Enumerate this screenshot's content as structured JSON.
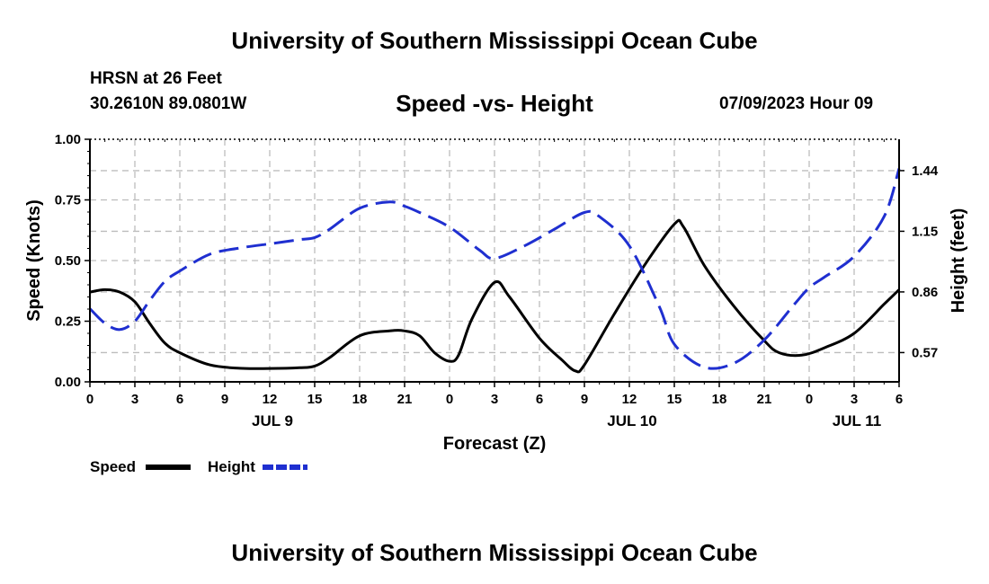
{
  "header": {
    "title": "University of Southern Mississippi Ocean Cube",
    "station": "HRSN at 26 Feet",
    "coords": "30.2610N  89.0801W",
    "subtitle": "Speed -vs- Height",
    "date": "07/09/2023 Hour 09"
  },
  "footer": {
    "title": "University of Southern Mississippi Ocean Cube"
  },
  "chart_data": {
    "type": "line",
    "title": "Speed -vs- Height",
    "xlabel": "Forecast (Z)",
    "ylabel": "Speed (Knots)",
    "y2label": "Height (feet)",
    "x_range": [
      0,
      54
    ],
    "ylim": [
      0,
      1.0
    ],
    "y2lim": [
      0.43,
      1.59
    ],
    "x_ticks": [
      {
        "x": 0,
        "label": "0"
      },
      {
        "x": 3,
        "label": "3"
      },
      {
        "x": 6,
        "label": "6"
      },
      {
        "x": 9,
        "label": "9"
      },
      {
        "x": 12,
        "label": "12"
      },
      {
        "x": 15,
        "label": "15"
      },
      {
        "x": 18,
        "label": "18"
      },
      {
        "x": 21,
        "label": "21"
      },
      {
        "x": 24,
        "label": "0"
      },
      {
        "x": 27,
        "label": "3"
      },
      {
        "x": 30,
        "label": "6"
      },
      {
        "x": 33,
        "label": "9"
      },
      {
        "x": 36,
        "label": "12"
      },
      {
        "x": 39,
        "label": "15"
      },
      {
        "x": 42,
        "label": "18"
      },
      {
        "x": 45,
        "label": "21"
      },
      {
        "x": 48,
        "label": "0"
      },
      {
        "x": 51,
        "label": "3"
      },
      {
        "x": 54,
        "label": "6"
      }
    ],
    "day_labels": [
      {
        "x": 12,
        "label": "JUL 9"
      },
      {
        "x": 36,
        "label": "JUL 10"
      },
      {
        "x": 51,
        "label": "JUL 11"
      }
    ],
    "y_ticks": [
      {
        "v": 0.0,
        "label": "0.00"
      },
      {
        "v": 0.25,
        "label": "0.25"
      },
      {
        "v": 0.5,
        "label": "0.50"
      },
      {
        "v": 0.75,
        "label": "0.75"
      },
      {
        "v": 1.0,
        "label": "1.00"
      }
    ],
    "y2_ticks": [
      {
        "v": 0.57,
        "label": "0.57"
      },
      {
        "v": 0.86,
        "label": "0.86"
      },
      {
        "v": 1.15,
        "label": "1.15"
      },
      {
        "v": 1.44,
        "label": "1.44"
      }
    ],
    "series": [
      {
        "name": "Speed",
        "axis": "left",
        "color": "#000000",
        "x": [
          0,
          1,
          2,
          3,
          4,
          5,
          6,
          8,
          10,
          12,
          14,
          15,
          16,
          18,
          20,
          21,
          22,
          23,
          24,
          24.6,
          25.5,
          27,
          28,
          30,
          31.5,
          32.4,
          33,
          35,
          37,
          39,
          39.6,
          41,
          43,
          45,
          46,
          47.5,
          49,
          51,
          53,
          54
        ],
        "values": [
          0.37,
          0.38,
          0.37,
          0.33,
          0.24,
          0.16,
          0.12,
          0.07,
          0.056,
          0.055,
          0.058,
          0.065,
          0.1,
          0.19,
          0.21,
          0.21,
          0.19,
          0.12,
          0.085,
          0.11,
          0.26,
          0.41,
          0.35,
          0.18,
          0.09,
          0.045,
          0.07,
          0.28,
          0.48,
          0.65,
          0.64,
          0.48,
          0.31,
          0.17,
          0.12,
          0.11,
          0.14,
          0.2,
          0.32,
          0.38
        ]
      },
      {
        "name": "Height",
        "axis": "right",
        "color": "#1f2fd0",
        "x": [
          0,
          1,
          2,
          3,
          4,
          5,
          6,
          8,
          10,
          12,
          14,
          15,
          16,
          18,
          20,
          21,
          22,
          24,
          26,
          27,
          29,
          31,
          33,
          34,
          36,
          38,
          39,
          41,
          43,
          45,
          47,
          48,
          49,
          51,
          53,
          54
        ],
        "values": [
          0.78,
          0.71,
          0.68,
          0.72,
          0.82,
          0.91,
          0.96,
          1.04,
          1.07,
          1.09,
          1.11,
          1.12,
          1.16,
          1.26,
          1.29,
          1.27,
          1.24,
          1.17,
          1.06,
          1.02,
          1.08,
          1.16,
          1.24,
          1.22,
          1.08,
          0.79,
          0.61,
          0.5,
          0.52,
          0.63,
          0.8,
          0.88,
          0.93,
          1.03,
          1.22,
          1.45
        ]
      }
    ],
    "legend": [
      {
        "label": "Speed",
        "color": "#000000",
        "dash": "solid"
      },
      {
        "label": "Height",
        "color": "#1f2fd0",
        "dash": "dashed"
      }
    ],
    "grid": true
  }
}
